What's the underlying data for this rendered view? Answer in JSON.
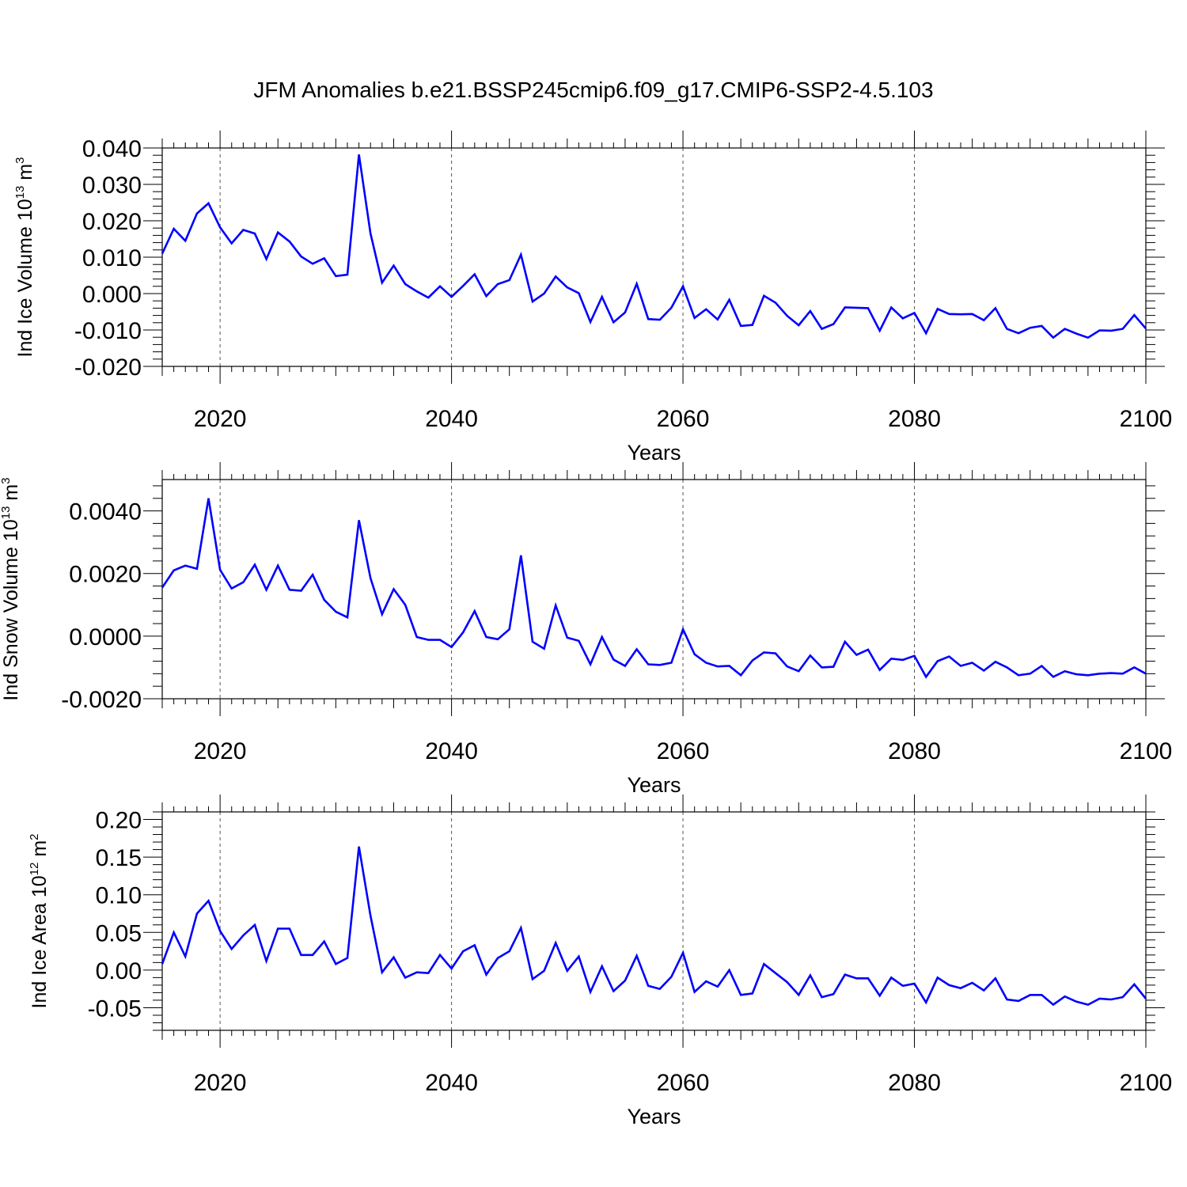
{
  "title": "JFM Anomalies b.e21.BSSP245cmip6.f09_g17.CMIP6-SSP2-4.5.103",
  "colors": {
    "line": "#0000ff",
    "axes": "#000000",
    "grid": "#555555"
  },
  "chart_data": [
    {
      "type": "line",
      "ylabel": "Ind Ice Volume 10",
      "ylabel_exp": "13",
      "ylabel_unit": "m",
      "ylabel_unit_exp": "3",
      "xlabel": "Years",
      "xlim": [
        2015,
        2100
      ],
      "ylim": [
        -0.02,
        0.04
      ],
      "yticks": [
        0.04,
        0.03,
        0.02,
        0.01,
        0.0,
        -0.01,
        -0.02
      ],
      "ytick_labels": [
        "0.040",
        "0.030",
        "0.020",
        "0.010",
        "0.000",
        "-0.010",
        "-0.020"
      ],
      "xticks": [
        2020,
        2040,
        2060,
        2080,
        2100
      ],
      "xtick_labels": [
        "2020",
        "2040",
        "2060",
        "2080",
        "2100"
      ],
      "x": [
        2015,
        2016,
        2017,
        2018,
        2019,
        2020,
        2021,
        2022,
        2023,
        2024,
        2025,
        2026,
        2027,
        2028,
        2029,
        2030,
        2031,
        2032,
        2033,
        2034,
        2035,
        2036,
        2037,
        2038,
        2039,
        2040,
        2041,
        2042,
        2043,
        2044,
        2045,
        2046,
        2047,
        2048,
        2049,
        2050,
        2051,
        2052,
        2053,
        2054,
        2055,
        2056,
        2057,
        2058,
        2059,
        2060,
        2061,
        2062,
        2063,
        2064,
        2065,
        2066,
        2067,
        2068,
        2069,
        2070,
        2071,
        2072,
        2073,
        2074,
        2075,
        2076,
        2077,
        2078,
        2079,
        2080,
        2081,
        2082,
        2083,
        2084,
        2085,
        2086,
        2087,
        2088,
        2089,
        2090,
        2091,
        2092,
        2093,
        2094,
        2095,
        2096,
        2097,
        2098,
        2099,
        2100
      ],
      "series": [
        {
          "values": [
            0.011,
            0.0178,
            0.0145,
            0.022,
            0.0248,
            0.0182,
            0.0138,
            0.0175,
            0.0165,
            0.0095,
            0.0168,
            0.0143,
            0.0102,
            0.0082,
            0.0097,
            0.0048,
            0.0052,
            0.0382,
            0.0165,
            0.003,
            0.0077,
            0.0026,
            0.0006,
            -0.0011,
            0.002,
            -0.0009,
            0.0021,
            0.0053,
            -0.0007,
            0.0026,
            0.0037,
            0.0107,
            -0.0022,
            0.0,
            0.0047,
            0.0017,
            0.0001,
            -0.0078,
            -0.0009,
            -0.0079,
            -0.0052,
            0.0027,
            -0.007,
            -0.0072,
            -0.0039,
            0.002,
            -0.0067,
            -0.0043,
            -0.0071,
            -0.0017,
            -0.0089,
            -0.0086,
            -0.0006,
            -0.0025,
            -0.0061,
            -0.0087,
            -0.0048,
            -0.0097,
            -0.0084,
            -0.0038,
            -0.0039,
            -0.004,
            -0.0102,
            -0.0038,
            -0.0068,
            -0.0053,
            -0.0109,
            -0.0042,
            -0.0056,
            -0.0057,
            -0.0056,
            -0.0073,
            -0.004,
            -0.0097,
            -0.0109,
            -0.0094,
            -0.0089,
            -0.0121,
            -0.0097,
            -0.011,
            -0.0121,
            -0.0101,
            -0.0102,
            -0.0097,
            -0.0059,
            -0.0096
          ]
        }
      ]
    },
    {
      "type": "line",
      "ylabel": "Ind Snow Volume 10",
      "ylabel_exp": "13",
      "ylabel_unit": "m",
      "ylabel_unit_exp": "3",
      "xlabel": "Years",
      "xlim": [
        2015,
        2100
      ],
      "ylim": [
        -0.002,
        0.005
      ],
      "yticks": [
        0.004,
        0.002,
        0.0,
        -0.002
      ],
      "ytick_labels": [
        "0.0040",
        "0.0020",
        "0.0000",
        "-0.0020"
      ],
      "xticks": [
        2020,
        2040,
        2060,
        2080,
        2100
      ],
      "xtick_labels": [
        "2020",
        "2040",
        "2060",
        "2080",
        "2100"
      ],
      "x": [
        2015,
        2016,
        2017,
        2018,
        2019,
        2020,
        2021,
        2022,
        2023,
        2024,
        2025,
        2026,
        2027,
        2028,
        2029,
        2030,
        2031,
        2032,
        2033,
        2034,
        2035,
        2036,
        2037,
        2038,
        2039,
        2040,
        2041,
        2042,
        2043,
        2044,
        2045,
        2046,
        2047,
        2048,
        2049,
        2050,
        2051,
        2052,
        2053,
        2054,
        2055,
        2056,
        2057,
        2058,
        2059,
        2060,
        2061,
        2062,
        2063,
        2064,
        2065,
        2066,
        2067,
        2068,
        2069,
        2070,
        2071,
        2072,
        2073,
        2074,
        2075,
        2076,
        2077,
        2078,
        2079,
        2080,
        2081,
        2082,
        2083,
        2084,
        2085,
        2086,
        2087,
        2088,
        2089,
        2090,
        2091,
        2092,
        2093,
        2094,
        2095,
        2096,
        2097,
        2098,
        2099,
        2100
      ],
      "series": [
        {
          "values": [
            0.00155,
            0.0021,
            0.00225,
            0.00215,
            0.0044,
            0.00212,
            0.00152,
            0.00172,
            0.00228,
            0.00148,
            0.00225,
            0.00148,
            0.00145,
            0.00196,
            0.00116,
            0.00078,
            0.0006,
            0.0037,
            0.00185,
            0.0007,
            0.0015,
            0.001,
            -3e-05,
            -0.00012,
            -0.00012,
            -0.00035,
            0.00012,
            0.0008,
            -3e-05,
            -0.0001,
            0.00022,
            0.00258,
            -0.00018,
            -0.0004,
            0.00098,
            -5e-05,
            -0.00015,
            -0.0009,
            -3e-05,
            -0.00075,
            -0.00095,
            -0.00042,
            -0.0009,
            -0.00092,
            -0.00085,
            0.00022,
            -0.00058,
            -0.00085,
            -0.00097,
            -0.00095,
            -0.00125,
            -0.00078,
            -0.00052,
            -0.00055,
            -0.00097,
            -0.00112,
            -0.00062,
            -0.001,
            -0.00098,
            -0.00018,
            -0.0006,
            -0.00043,
            -0.00108,
            -0.00072,
            -0.00076,
            -0.00063,
            -0.0013,
            -0.0008,
            -0.00065,
            -0.00095,
            -0.00085,
            -0.0011,
            -0.00082,
            -0.001,
            -0.00125,
            -0.0012,
            -0.00095,
            -0.0013,
            -0.00112,
            -0.00122,
            -0.00125,
            -0.0012,
            -0.00118,
            -0.0012,
            -0.001,
            -0.0012
          ]
        }
      ]
    },
    {
      "type": "line",
      "ylabel": "Ind Ice Area 10",
      "ylabel_exp": "12",
      "ylabel_unit": "m",
      "ylabel_unit_exp": "2",
      "xlabel": "Years",
      "xlim": [
        2015,
        2100
      ],
      "ylim": [
        -0.08,
        0.21
      ],
      "yticks": [
        0.2,
        0.15,
        0.1,
        0.05,
        0.0,
        -0.05
      ],
      "ytick_labels": [
        "0.20",
        "0.15",
        "0.10",
        "0.05",
        "0.00",
        "-0.05"
      ],
      "xticks": [
        2020,
        2040,
        2060,
        2080,
        2100
      ],
      "xtick_labels": [
        "2020",
        "2040",
        "2060",
        "2080",
        "2100"
      ],
      "x": [
        2015,
        2016,
        2017,
        2018,
        2019,
        2020,
        2021,
        2022,
        2023,
        2024,
        2025,
        2026,
        2027,
        2028,
        2029,
        2030,
        2031,
        2032,
        2033,
        2034,
        2035,
        2036,
        2037,
        2038,
        2039,
        2040,
        2041,
        2042,
        2043,
        2044,
        2045,
        2046,
        2047,
        2048,
        2049,
        2050,
        2051,
        2052,
        2053,
        2054,
        2055,
        2056,
        2057,
        2058,
        2059,
        2060,
        2061,
        2062,
        2063,
        2064,
        2065,
        2066,
        2067,
        2068,
        2069,
        2070,
        2071,
        2072,
        2073,
        2074,
        2075,
        2076,
        2077,
        2078,
        2079,
        2080,
        2081,
        2082,
        2083,
        2084,
        2085,
        2086,
        2087,
        2088,
        2089,
        2090,
        2091,
        2092,
        2093,
        2094,
        2095,
        2096,
        2097,
        2098,
        2099,
        2100
      ],
      "series": [
        {
          "values": [
            0.008,
            0.05,
            0.018,
            0.075,
            0.092,
            0.052,
            0.028,
            0.046,
            0.06,
            0.012,
            0.055,
            0.055,
            0.02,
            0.02,
            0.038,
            0.008,
            0.016,
            0.164,
            0.072,
            -0.003,
            0.017,
            -0.01,
            -0.003,
            -0.004,
            0.02,
            0.002,
            0.025,
            0.033,
            -0.006,
            0.016,
            0.025,
            0.056,
            -0.012,
            -0.001,
            0.036,
            -0.001,
            0.018,
            -0.029,
            0.005,
            -0.028,
            -0.014,
            0.019,
            -0.021,
            -0.025,
            -0.009,
            0.023,
            -0.029,
            -0.015,
            -0.022,
            0.0,
            -0.033,
            -0.031,
            0.008,
            -0.004,
            -0.016,
            -0.033,
            -0.007,
            -0.036,
            -0.032,
            -0.006,
            -0.011,
            -0.011,
            -0.034,
            -0.01,
            -0.021,
            -0.018,
            -0.043,
            -0.01,
            -0.02,
            -0.024,
            -0.017,
            -0.027,
            -0.011,
            -0.039,
            -0.041,
            -0.033,
            -0.033,
            -0.046,
            -0.035,
            -0.042,
            -0.046,
            -0.038,
            -0.039,
            -0.036,
            -0.019,
            -0.038
          ]
        }
      ]
    }
  ]
}
